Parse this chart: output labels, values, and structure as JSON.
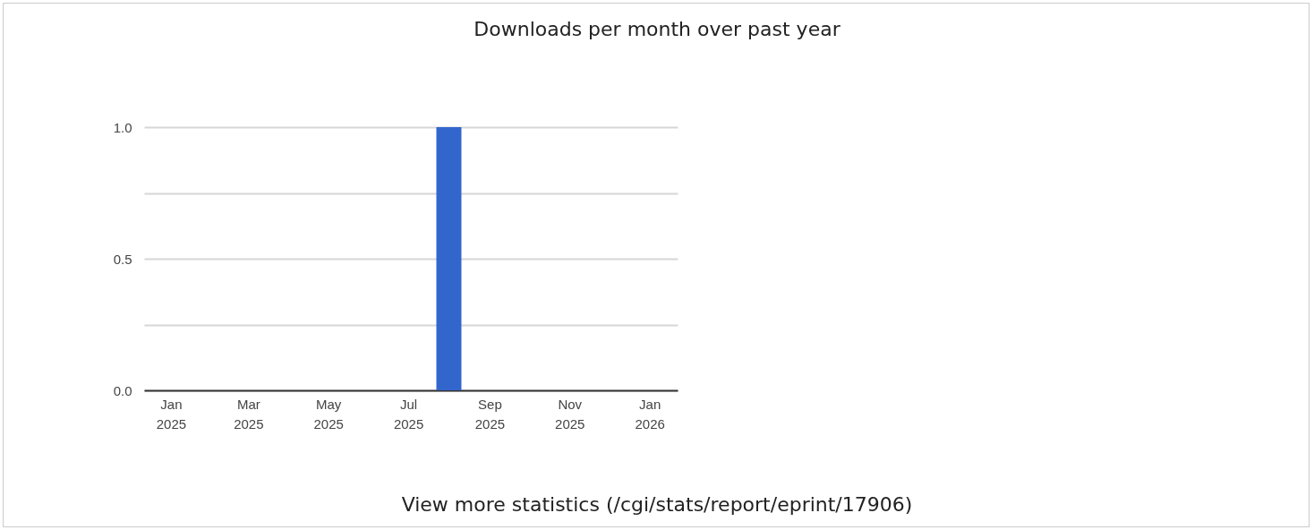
{
  "chart_data": {
    "type": "bar",
    "title": "Downloads per month over past year",
    "x": [
      "2025-01",
      "2025-02",
      "2025-03",
      "2025-04",
      "2025-05",
      "2025-06",
      "2025-07",
      "2025-08",
      "2025-09",
      "2025-10",
      "2025-11",
      "2025-12"
    ],
    "values": [
      0,
      0,
      0,
      0,
      0,
      0,
      0,
      1,
      0,
      0,
      0,
      0
    ],
    "color": "#3366cc",
    "xlim": [
      "2024-12-15",
      "2026-01-19"
    ],
    "xticks": [
      {
        "value": "2025-01",
        "label": "Jan 2025"
      },
      {
        "value": "2025-03",
        "label": "Mar 2025"
      },
      {
        "value": "2025-05",
        "label": "May 2025"
      },
      {
        "value": "2025-07",
        "label": "Jul 2025"
      },
      {
        "value": "2025-09",
        "label": "Sep 2025"
      },
      {
        "value": "2025-11",
        "label": "Nov 2025"
      },
      {
        "value": "2026-01",
        "label": "Jan 2026"
      }
    ],
    "ylim": [
      0,
      1
    ],
    "yticks": [
      {
        "value": 0,
        "label": "0.0"
      },
      {
        "value": 0.25,
        "label": null
      },
      {
        "value": 0.5,
        "label": "0.5"
      },
      {
        "value": 0.75,
        "label": null
      },
      {
        "value": 1,
        "label": "1.0"
      }
    ],
    "grid": "y",
    "annotations": [
      "View more statistics (/cgi/stats/report/eprint/17906)"
    ]
  }
}
